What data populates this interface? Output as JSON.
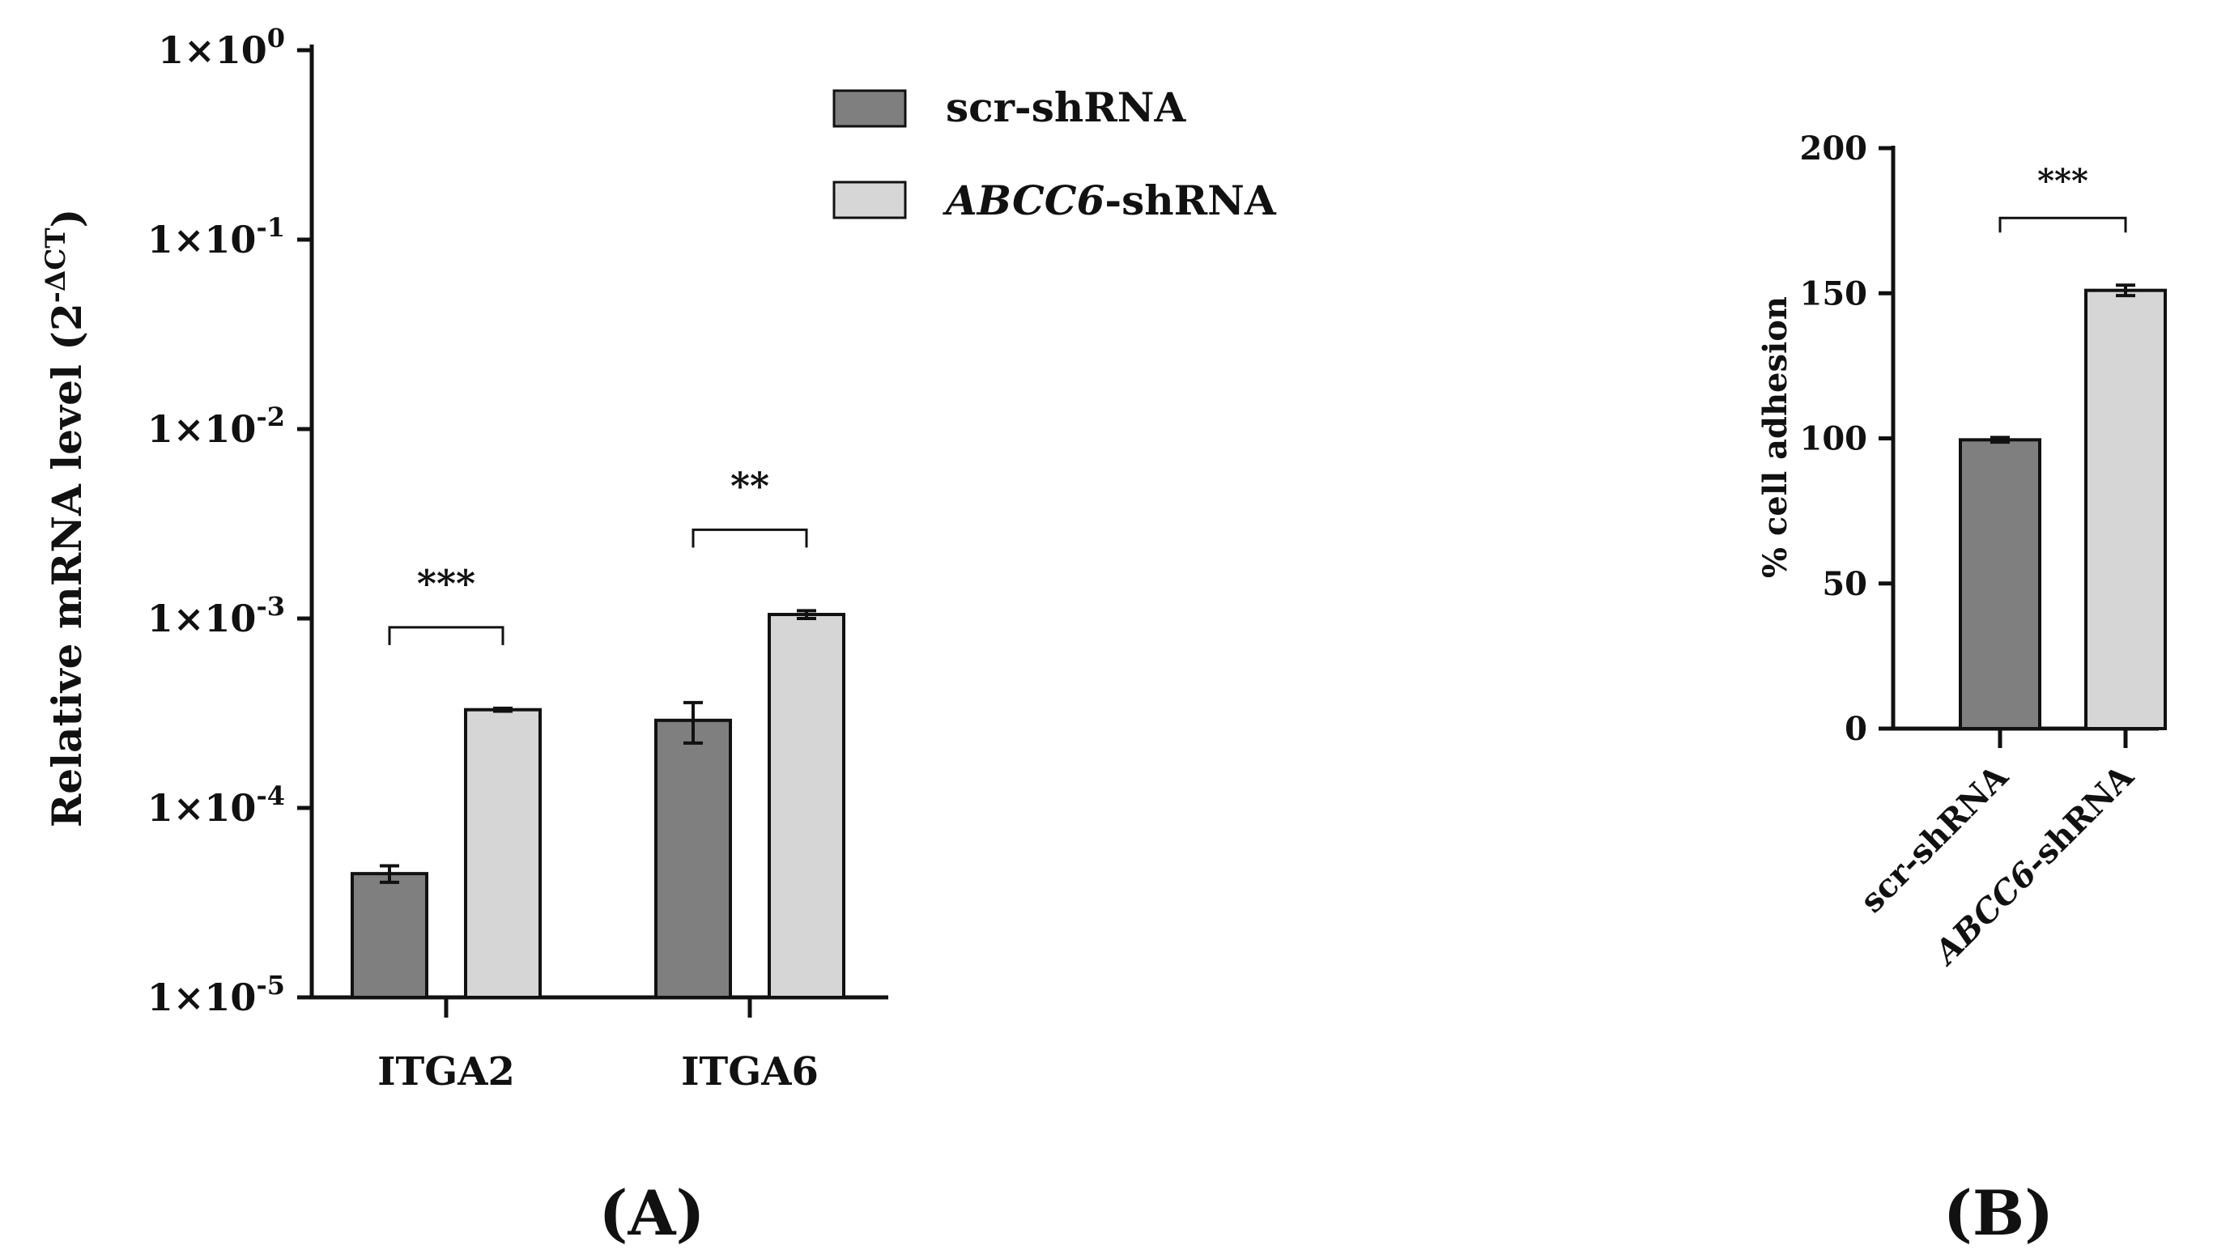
{
  "panels": {
    "a_label": "A",
    "b_label": "B"
  },
  "colors": {
    "series1": "#7f7f7f",
    "series2": "#d6d6d6",
    "stroke": "#111111"
  },
  "chart_data": [
    {
      "id": "A",
      "type": "bar",
      "ylabel": "Relative mRNA level (2",
      "ylabel_sup": "-ΔCT",
      "ylabel_close": ")",
      "yscale": "log",
      "ylim": [
        1e-05,
        1
      ],
      "yticks": [
        {
          "value": 1e-05,
          "base": "1×10",
          "exp": "-5"
        },
        {
          "value": 0.0001,
          "base": "1×10",
          "exp": "-4"
        },
        {
          "value": 0.001,
          "base": "1×10",
          "exp": "-3"
        },
        {
          "value": 0.01,
          "base": "1×10",
          "exp": "-2"
        },
        {
          "value": 0.1,
          "base": "1×10",
          "exp": "-1"
        },
        {
          "value": 1,
          "base": "1×10",
          "exp": "0"
        }
      ],
      "categories": [
        "ITGA2",
        "ITGA6"
      ],
      "series": [
        {
          "name": "scr-shRNA",
          "values": [
            4.5e-05,
            0.00029
          ],
          "errors": [
            4.5e-06,
            7e-05
          ]
        },
        {
          "name_italic": "ABCC6",
          "name_rest": "-shRNA",
          "values": [
            0.00033,
            0.00105
          ],
          "errors": [
            6e-06,
            5e-05
          ]
        }
      ],
      "significance": [
        "***",
        "**"
      ],
      "legend_position": "top-center"
    },
    {
      "id": "B",
      "type": "bar",
      "ylabel": "% cell adhesion",
      "ylim": [
        0,
        200
      ],
      "yticks": [
        0,
        50,
        100,
        150,
        200
      ],
      "categories": [
        {
          "plain": "scr-shRNA"
        },
        {
          "italic": "ABCC6",
          "rest": "-shRNA"
        }
      ],
      "values": [
        99.5,
        151
      ],
      "errors": [
        0.8,
        1.8
      ],
      "significance": "***"
    }
  ]
}
